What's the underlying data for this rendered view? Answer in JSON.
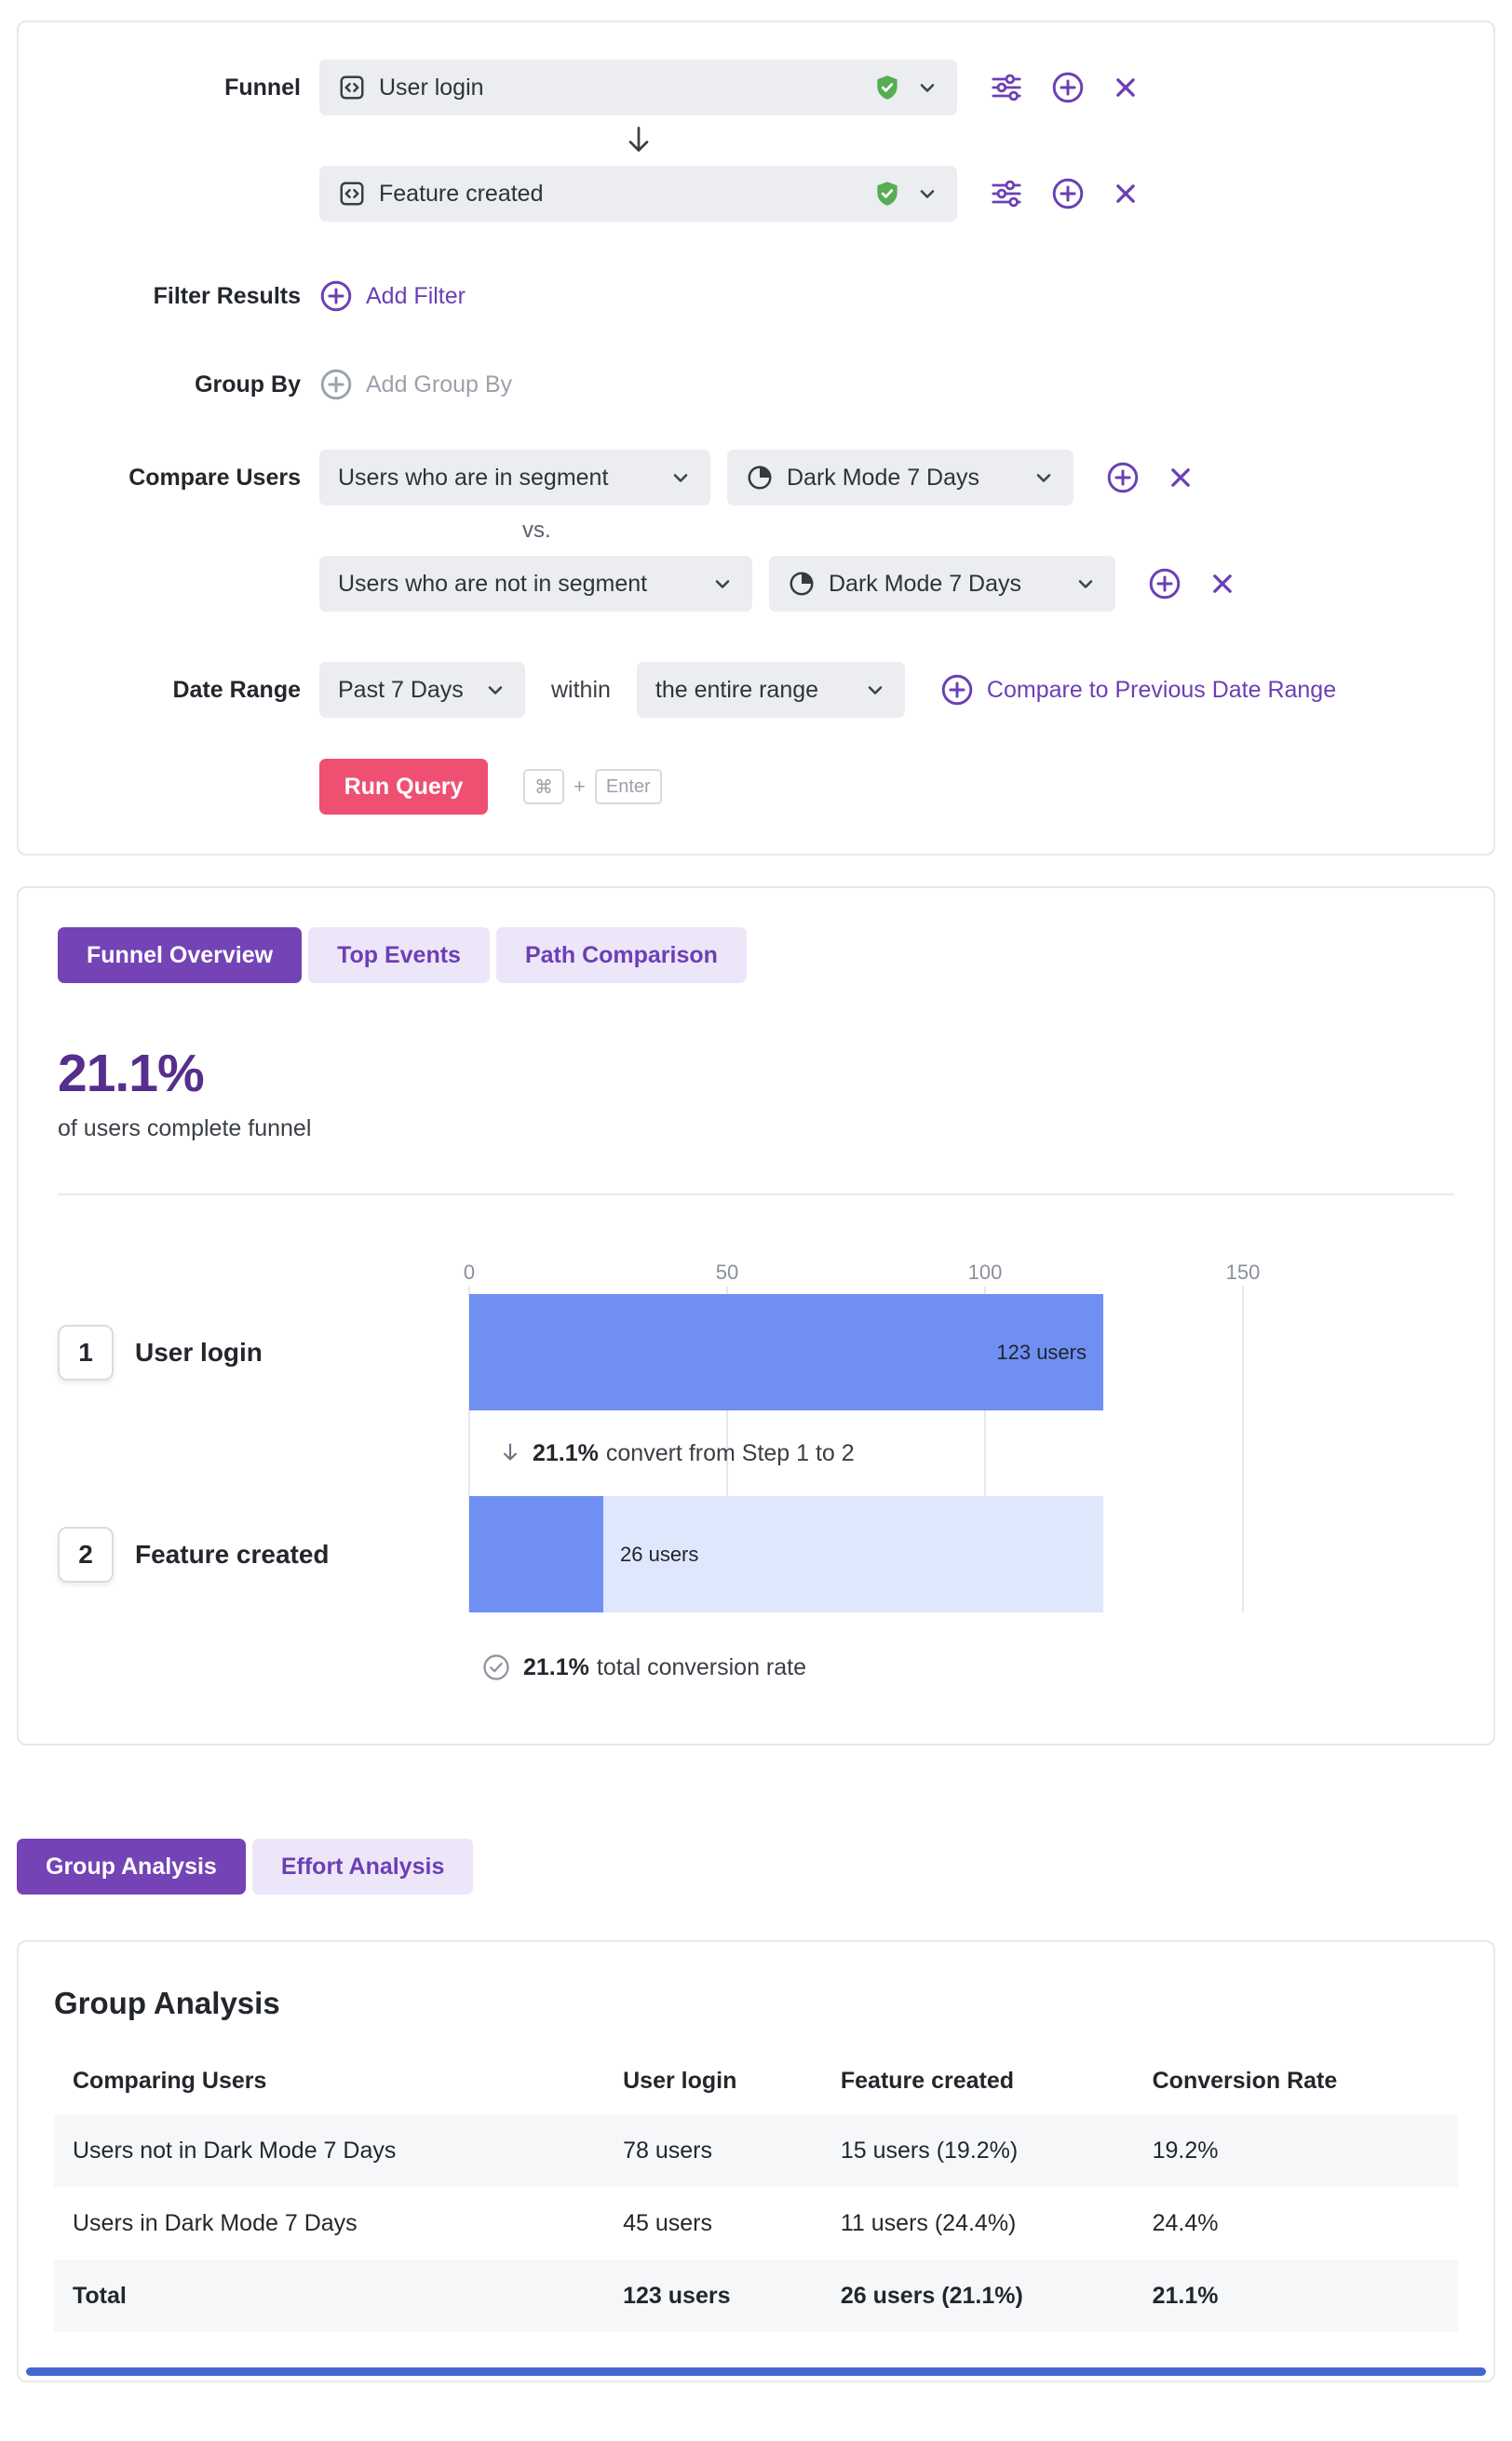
{
  "colors": {
    "accent_purple": "#6C3FB5",
    "tab_active_purple": "#7443B5",
    "tab_inactive_lavender": "#EDE6F8",
    "headline_purple": "#562E8C",
    "run_button_red": "#EF5072",
    "bar_blue": "#6F8FF2",
    "bar_track_light_blue": "#DFE7FC",
    "verified_green": "#55AE52",
    "bottom_bar_blue": "#4467D0"
  },
  "icons": {
    "event": "square-code-icon",
    "verified": "shield-check-icon",
    "dropdown": "chevron-down-icon",
    "filter_settings": "tune-sliders-icon",
    "add": "plus-circle-icon",
    "remove": "x-icon",
    "segment": "pie-chart-icon",
    "step_flow": "arrow-down-icon",
    "total": "check-circle-icon"
  },
  "query_builder": {
    "funnel_label": "Funnel",
    "steps": [
      {
        "name": "User login",
        "verified": true
      },
      {
        "name": "Feature created",
        "verified": true
      }
    ],
    "filter_results": {
      "label": "Filter Results",
      "action": "Add Filter"
    },
    "group_by": {
      "label": "Group By",
      "action": "Add Group By"
    },
    "compare_users": {
      "label": "Compare Users",
      "vs": "vs.",
      "rows": [
        {
          "criteria": "Users who are in segment",
          "segment": "Dark Mode 7 Days"
        },
        {
          "criteria": "Users who are not in segment",
          "segment": "Dark Mode 7 Days"
        }
      ]
    },
    "date_range": {
      "label": "Date Range",
      "selected": "Past 7 Days",
      "within": "within",
      "scope": "the entire range",
      "compare_action": "Compare to Previous Date Range"
    },
    "run": {
      "button": "Run Query",
      "key1": "⌘",
      "plus": "+",
      "key2": "Enter"
    }
  },
  "results": {
    "tabs": [
      {
        "label": "Funnel Overview",
        "active": true
      },
      {
        "label": "Top Events",
        "active": false
      },
      {
        "label": "Path Comparison",
        "active": false
      }
    ],
    "headline": "21.1%",
    "headline_caption": "of users complete funnel",
    "chart_data": {
      "type": "bar",
      "orientation": "horizontal",
      "unit": "users",
      "xlim": [
        0,
        150
      ],
      "axis_ticks": [
        0,
        50,
        100,
        150
      ],
      "grid": true,
      "steps": [
        {
          "step": 1,
          "label": "User login",
          "users": 123,
          "value_label": "123 users"
        },
        {
          "step": 2,
          "label": "Feature created",
          "users": 26,
          "value_label": "26 users"
        }
      ],
      "step_conversion": {
        "percent": "21.1%",
        "text": "convert from Step 1 to 2"
      },
      "total_conversion": {
        "percent": "21.1%",
        "text": "total conversion rate"
      }
    }
  },
  "analysis": {
    "tabs": [
      {
        "label": "Group Analysis",
        "active": true
      },
      {
        "label": "Effort Analysis",
        "active": false
      }
    ],
    "title": "Group Analysis",
    "table": {
      "headers": [
        "Comparing Users",
        "User login",
        "Feature created",
        "Conversion Rate"
      ],
      "rows": [
        [
          "Users not in Dark Mode 7 Days",
          "78 users",
          "15 users (19.2%)",
          "19.2%"
        ],
        [
          "Users in Dark Mode 7 Days",
          "45 users",
          "11 users (24.4%)",
          "24.4%"
        ],
        [
          "Total",
          "123 users",
          "26 users (21.1%)",
          "21.1%"
        ]
      ]
    }
  }
}
